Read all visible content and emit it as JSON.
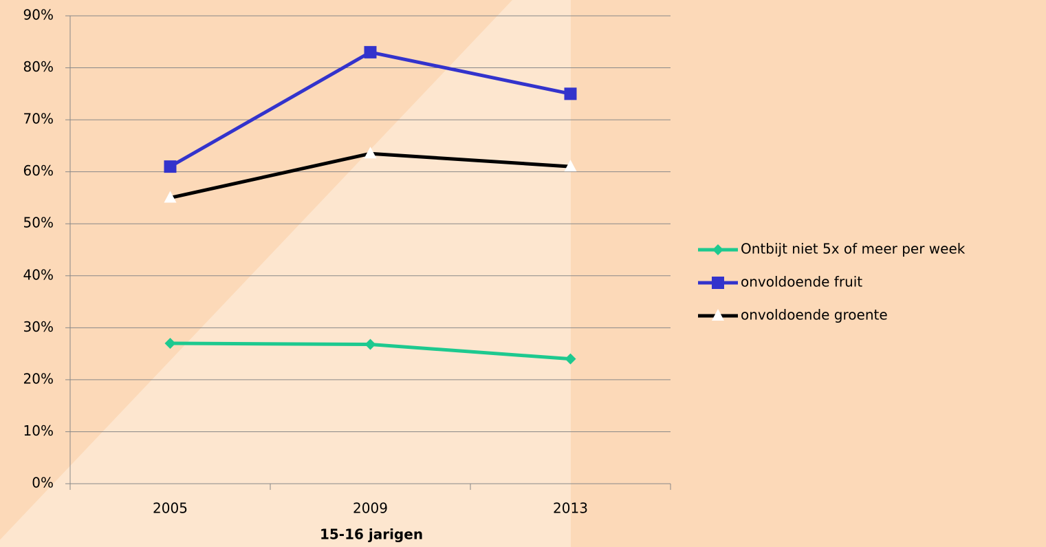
{
  "chart_data": {
    "type": "line",
    "x_label": "15-16 jarigen",
    "categories": [
      "2005",
      "2009",
      "2013"
    ],
    "series": [
      {
        "name": "Ontbijt niet 5x of meer per week",
        "color": "#1dc98f",
        "marker": "diamond",
        "values": [
          27,
          26.8,
          24
        ]
      },
      {
        "name": "onvoldoende fruit",
        "color": "#3333cc",
        "marker": "square",
        "values": [
          61,
          83,
          75
        ]
      },
      {
        "name": "onvoldoende groente",
        "color": "#000000",
        "marker": "triangle",
        "values": [
          55,
          63.5,
          61
        ]
      }
    ],
    "ylim": [
      0,
      90
    ],
    "yticks": [
      {
        "value": 0,
        "label": "0%"
      },
      {
        "value": 10,
        "label": "10%"
      },
      {
        "value": 20,
        "label": "20%"
      },
      {
        "value": 30,
        "label": "30%"
      },
      {
        "value": 40,
        "label": "40%"
      },
      {
        "value": 50,
        "label": "50%"
      },
      {
        "value": 60,
        "label": "60%"
      },
      {
        "value": 70,
        "label": "70%"
      },
      {
        "value": 80,
        "label": "80%"
      },
      {
        "value": 90,
        "label": "90%"
      }
    ],
    "grid": true,
    "legend": "right"
  }
}
